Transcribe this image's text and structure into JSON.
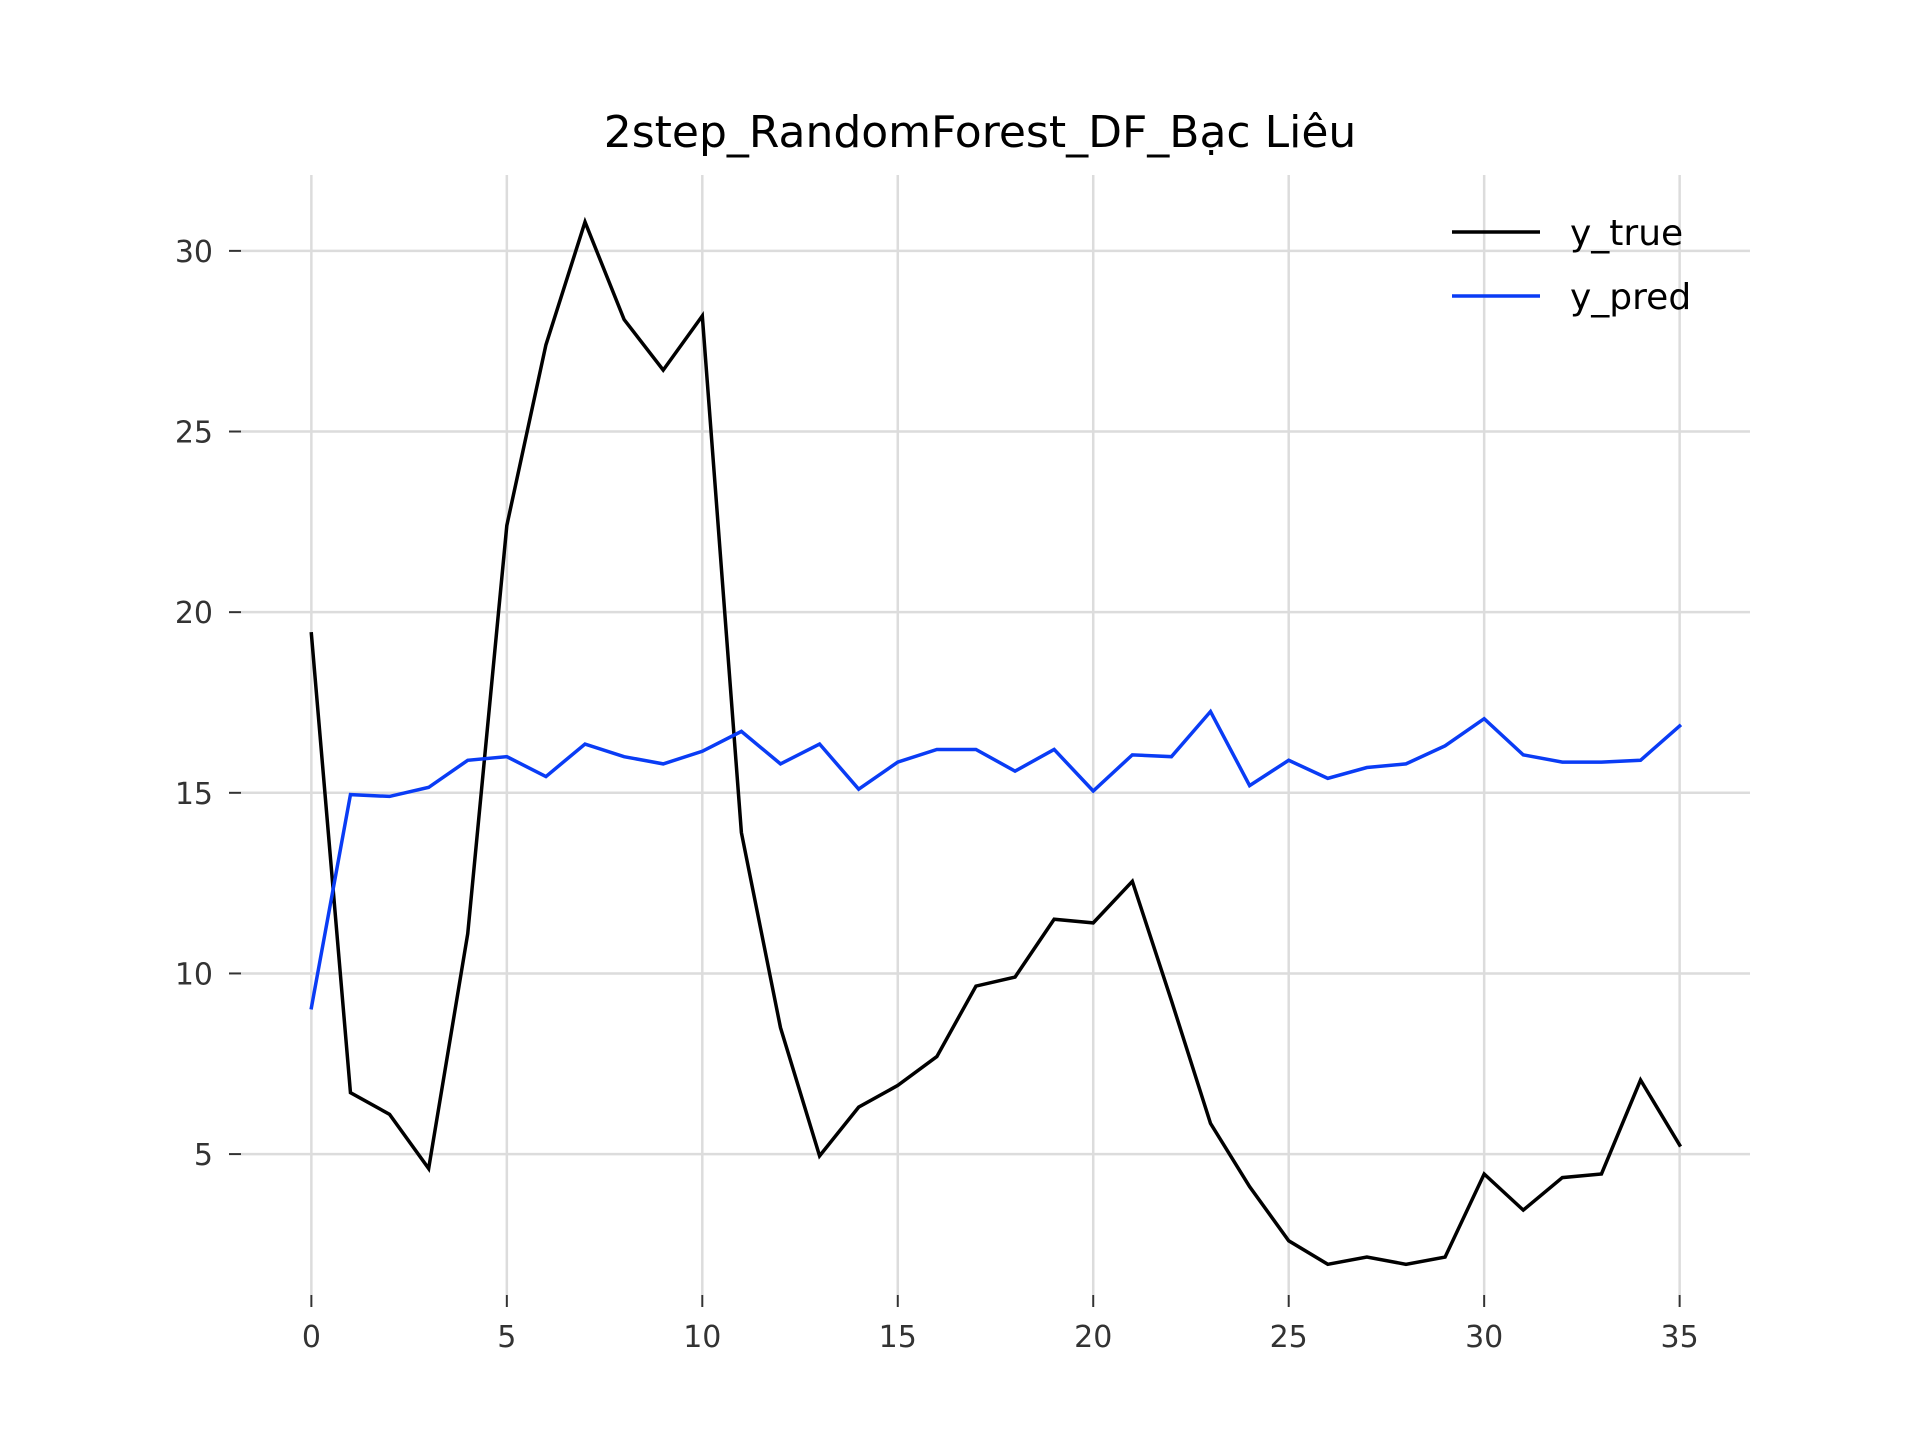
{
  "chart_data": {
    "type": "line",
    "title": "2step_RandomForest_DF_Bạc Liêu",
    "xlabel": "",
    "ylabel": "",
    "x": [
      0,
      1,
      2,
      3,
      4,
      5,
      6,
      7,
      8,
      9,
      10,
      11,
      12,
      13,
      14,
      15,
      16,
      17,
      18,
      19,
      20,
      21,
      22,
      23,
      24,
      25,
      26,
      27,
      28,
      29,
      30,
      31,
      32,
      33,
      34,
      35
    ],
    "x_ticks": [
      0,
      5,
      10,
      15,
      20,
      25,
      30,
      35
    ],
    "y_ticks": [
      5,
      10,
      15,
      20,
      25,
      30
    ],
    "xlim": [
      -1.8,
      36.8
    ],
    "ylim": [
      1.1,
      32.1
    ],
    "grid": true,
    "legend_position": "top-right",
    "series": [
      {
        "name": "y_true",
        "color": "#000000",
        "values": [
          19.4,
          6.7,
          6.1,
          4.6,
          11.1,
          22.4,
          27.4,
          30.8,
          28.1,
          26.7,
          28.2,
          13.9,
          8.5,
          4.95,
          6.3,
          6.9,
          7.7,
          9.65,
          9.9,
          11.5,
          11.4,
          12.55,
          9.25,
          5.85,
          4.1,
          2.6,
          1.95,
          2.15,
          1.95,
          2.15,
          4.45,
          3.45,
          4.35,
          4.45,
          7.05,
          5.25
        ]
      },
      {
        "name": "y_pred",
        "color": "#0a3cf5",
        "values": [
          9.05,
          14.95,
          14.9,
          15.15,
          15.9,
          16.0,
          15.45,
          16.35,
          16.0,
          15.8,
          16.15,
          16.7,
          15.8,
          16.35,
          15.1,
          15.85,
          16.2,
          16.2,
          15.6,
          16.2,
          15.05,
          16.05,
          16.0,
          17.25,
          15.2,
          15.9,
          15.4,
          15.7,
          15.8,
          16.3,
          17.05,
          16.05,
          15.85,
          15.85,
          15.9,
          16.85
        ]
      }
    ]
  }
}
